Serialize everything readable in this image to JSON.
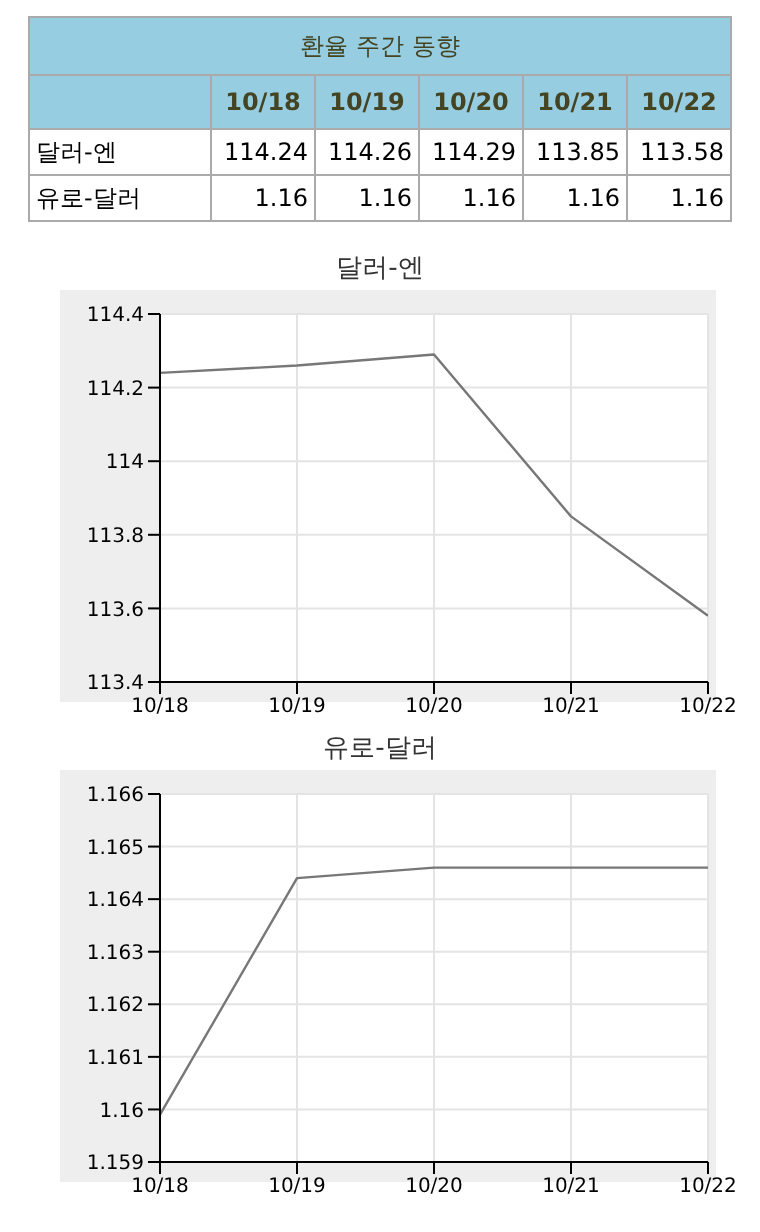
{
  "chart_data": [
    {
      "type": "other",
      "title": "환율 주간 동향",
      "categories": [
        "10/18",
        "10/19",
        "10/20",
        "10/21",
        "10/22"
      ],
      "data_labels": true,
      "series": [
        {
          "name": "달러-엔",
          "values": [
            114.24,
            114.26,
            114.29,
            113.85,
            113.58
          ]
        },
        {
          "name": "유로-달러",
          "values": [
            1.16,
            1.16,
            1.16,
            1.16,
            1.16
          ]
        }
      ]
    },
    {
      "type": "line",
      "title": "달러-엔",
      "categories": [
        "10/18",
        "10/19",
        "10/20",
        "10/21",
        "10/22"
      ],
      "series": [
        {
          "color": "#777777",
          "values": [
            114.24,
            114.26,
            114.29,
            113.85,
            113.58
          ]
        }
      ],
      "ylim": [
        113.4,
        114.4
      ],
      "yticks": [
        113.4,
        113.6,
        113.8,
        114,
        114.2,
        114.4
      ],
      "grid": true,
      "marker": "none",
      "line_style": "solid"
    },
    {
      "type": "line",
      "title": "유로-달러",
      "categories": [
        "10/18",
        "10/19",
        "10/20",
        "10/21",
        "10/22"
      ],
      "series": [
        {
          "color": "#777777",
          "values": [
            1.1599,
            1.1644,
            1.1646,
            1.1646,
            1.1646
          ]
        }
      ],
      "ylim": [
        1.159,
        1.166
      ],
      "yticks": [
        1.159,
        1.16,
        1.161,
        1.162,
        1.163,
        1.164,
        1.165,
        1.166
      ],
      "grid": true,
      "marker": "none",
      "line_style": "solid"
    }
  ]
}
